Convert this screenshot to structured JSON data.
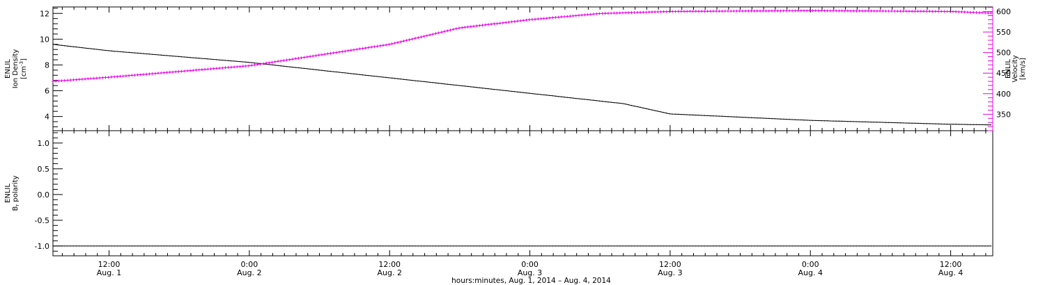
{
  "colors": {
    "density": "#000000",
    "velocity": "#e600e6",
    "frame": "#000000"
  },
  "chart_data": [
    {
      "type": "line",
      "panel": "top",
      "x_unit": "hours since Aug. 1, 2014 0:00",
      "xlim": [
        7.2,
        87.6
      ],
      "grid": false,
      "series": [
        {
          "name": "ENLIL Ion Density",
          "axis": "left",
          "color": "#000000",
          "x": [
            7.2,
            12,
            24,
            36,
            48,
            56,
            60,
            72,
            84,
            87.5
          ],
          "values": [
            9.6,
            9.1,
            8.2,
            7.0,
            5.8,
            5.0,
            4.2,
            3.7,
            3.4,
            3.35
          ]
        },
        {
          "name": "ENLIL Velocity",
          "axis": "right",
          "color": "#e600e6",
          "x": [
            7.2,
            12,
            24,
            36,
            42,
            48,
            54,
            60,
            72,
            84,
            87.5
          ],
          "values": [
            430,
            440,
            468,
            520,
            560,
            580,
            595,
            600,
            602,
            600,
            596
          ]
        }
      ],
      "left_axis": {
        "label_lines": [
          "ENLIL",
          "Ion Density"
        ],
        "unit_base": "[cm",
        "unit_sup": "-3",
        "unit_end": "]",
        "ylim": [
          2.9,
          12.5
        ],
        "ticks": [
          "4",
          "6",
          "8",
          "10",
          "12"
        ]
      },
      "right_axis": {
        "label_lines": [
          "ENLIL",
          "Velocity",
          "[km/s]"
        ],
        "ylim": [
          310,
          611
        ],
        "ticks": [
          "350",
          "400",
          "450",
          "500",
          "550",
          "600"
        ]
      }
    },
    {
      "type": "line",
      "panel": "bottom",
      "x_unit": "hours since Aug. 1, 2014 0:00",
      "xlim": [
        7.2,
        87.6
      ],
      "grid": false,
      "series": [
        {
          "name": "ENLIL Br polarity",
          "color": "#000000",
          "x": [
            7.2,
            87.6
          ],
          "values": [
            -1.0,
            -1.0
          ]
        }
      ],
      "left_axis": {
        "label_lines": [
          "ENLIL"
        ],
        "label2_base": "B",
        "label2_sub": "r",
        "label2_end": " polarity",
        "ylim": [
          -1.19,
          1.24
        ],
        "ticks": [
          "-1.0",
          "-0.5",
          "0.0",
          "0.5",
          "1.0"
        ]
      }
    }
  ],
  "x_axis": {
    "ticks": [
      {
        "time": "12:00",
        "date": "Aug. 1"
      },
      {
        "time": "0:00",
        "date": "Aug. 2"
      },
      {
        "time": "12:00",
        "date": "Aug. 2"
      },
      {
        "time": "0:00",
        "date": "Aug. 3"
      },
      {
        "time": "12:00",
        "date": "Aug. 3"
      },
      {
        "time": "0:00",
        "date": "Aug. 4"
      },
      {
        "time": "12:00",
        "date": "Aug. 4"
      }
    ],
    "label": "hours:minutes, Aug.  1, 2014 – Aug.  4, 2014"
  }
}
